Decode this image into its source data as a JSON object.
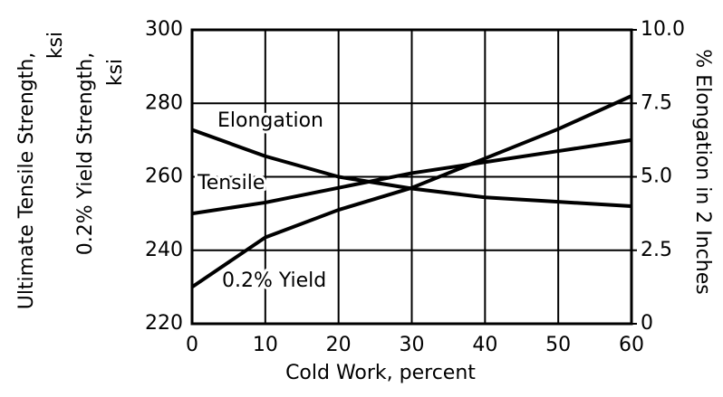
{
  "chart_data": {
    "type": "line",
    "xlabel": "Cold Work, percent",
    "ylabel_lines": [
      "Ultimate Tensile Strength,",
      "ksi",
      "0.2% Yield Strength,",
      "ksi"
    ],
    "y2label": "% Elongation in 2 Inches",
    "x": [
      0,
      10,
      20,
      30,
      40,
      50,
      60
    ],
    "xlim": [
      0,
      60
    ],
    "xticks": [
      0,
      10,
      20,
      30,
      40,
      50,
      60
    ],
    "ylim": [
      220,
      300
    ],
    "yticks": [
      220,
      240,
      260,
      280,
      300
    ],
    "y2lim": [
      0,
      10
    ],
    "y2ticks": [
      0,
      2.5,
      {
        "value": 5,
        "label": "5.0"
      },
      7.5,
      {
        "value": 10,
        "label": "10.0"
      }
    ],
    "grid": true,
    "series": [
      {
        "name": "Tensile",
        "color": "#000000",
        "values": [
          250,
          253,
          257,
          261,
          264,
          267,
          270
        ]
      },
      {
        "name": "0.2% Yield",
        "color": "#000000",
        "values": [
          230,
          243.5,
          251,
          257,
          265,
          273,
          282
        ]
      },
      {
        "name": "Elongation",
        "color": "#000000",
        "axis": "y2",
        "values": [
          6.6,
          5.7,
          5.0,
          4.6,
          4.3,
          4.15,
          4.0
        ]
      }
    ]
  }
}
